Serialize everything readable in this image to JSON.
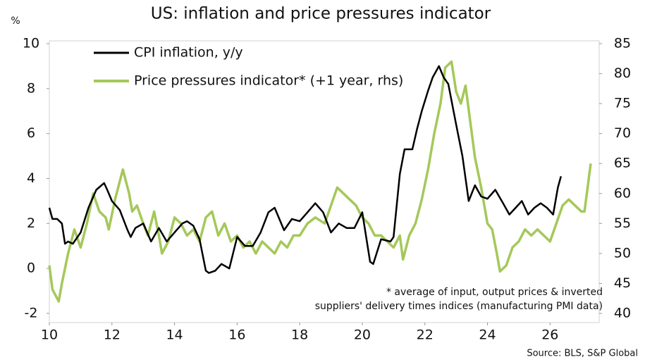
{
  "chart_data": {
    "type": "line",
    "title": "US: inflation and price pressures indicator",
    "y_label": "%",
    "annotation": [
      "* average of input, output prices & inverted",
      "suppliers' delivery times indices (manufacturing PMI data)"
    ],
    "source": "Source: BLS, S&P Global",
    "legend": "upper left",
    "xlim": [
      2010,
      2027.57
    ],
    "xticks": [
      {
        "value": 2010,
        "label": "10"
      },
      {
        "value": 2012,
        "label": "12"
      },
      {
        "value": 2014,
        "label": "14"
      },
      {
        "value": 2016,
        "label": "16"
      },
      {
        "value": 2018,
        "label": "18"
      },
      {
        "value": 2020,
        "label": "20"
      },
      {
        "value": 2022,
        "label": "22"
      },
      {
        "value": 2024,
        "label": "24"
      },
      {
        "value": 2026,
        "label": "26"
      }
    ],
    "ylim": [
      -2,
      10
    ],
    "yticks": [
      -2,
      0,
      2,
      4,
      6,
      8,
      10
    ],
    "negative_tick_color": "#e00000",
    "y2lim": [
      40,
      85
    ],
    "y2ticks": [
      40,
      45,
      50,
      55,
      60,
      65,
      70,
      75,
      80,
      85
    ],
    "series": [
      {
        "name": "CPI inflation, y/y",
        "color": "#000000",
        "x": [
          2010.0,
          2010.1,
          2010.25,
          2010.4,
          2010.5,
          2010.6,
          2010.75,
          2011.0,
          2011.25,
          2011.5,
          2011.75,
          2011.85,
          2012.0,
          2012.25,
          2012.5,
          2012.6,
          2012.75,
          2013.0,
          2013.25,
          2013.5,
          2013.75,
          2014.0,
          2014.25,
          2014.4,
          2014.6,
          2014.8,
          2015.0,
          2015.1,
          2015.3,
          2015.5,
          2015.75,
          2016.0,
          2016.25,
          2016.5,
          2016.75,
          2017.0,
          2017.2,
          2017.5,
          2017.75,
          2018.0,
          2018.25,
          2018.5,
          2018.75,
          2019.0,
          2019.25,
          2019.5,
          2019.75,
          2020.0,
          2020.25,
          2020.35,
          2020.6,
          2020.9,
          2021.0,
          2021.2,
          2021.35,
          2021.6,
          2021.75,
          2021.9,
          2022.1,
          2022.25,
          2022.45,
          2022.6,
          2022.75,
          2023.0,
          2023.2,
          2023.4,
          2023.6,
          2023.8,
          2024.0,
          2024.25,
          2024.5,
          2024.7,
          2024.9,
          2025.1,
          2025.3,
          2025.5,
          2025.7,
          2025.9,
          2026.1,
          2026.25,
          2026.35
        ],
        "values": [
          2.7,
          2.2,
          2.2,
          2.0,
          1.1,
          1.2,
          1.1,
          1.6,
          2.7,
          3.5,
          3.8,
          3.5,
          3.0,
          2.6,
          1.7,
          1.4,
          1.8,
          2.0,
          1.2,
          1.8,
          1.2,
          1.6,
          2.0,
          2.1,
          1.9,
          1.3,
          -0.1,
          -0.2,
          -0.1,
          0.2,
          0.0,
          1.4,
          1.0,
          1.0,
          1.6,
          2.5,
          2.7,
          1.7,
          2.2,
          2.1,
          2.5,
          2.9,
          2.5,
          1.6,
          2.0,
          1.8,
          1.8,
          2.5,
          0.3,
          0.2,
          1.3,
          1.2,
          1.4,
          4.2,
          5.3,
          5.3,
          6.2,
          7.0,
          7.9,
          8.5,
          9.0,
          8.5,
          8.2,
          6.4,
          5.0,
          3.0,
          3.7,
          3.2,
          3.1,
          3.5,
          2.9,
          2.4,
          2.7,
          3.0,
          2.4,
          2.7,
          2.9,
          2.7,
          2.4,
          3.6,
          4.1
        ]
      },
      {
        "name": "Price pressures indicator* (+1 year, rhs)",
        "color": "#a5c85a",
        "axis": "y2",
        "x": [
          2010.0,
          2010.1,
          2010.3,
          2010.4,
          2010.6,
          2010.8,
          2011.0,
          2011.2,
          2011.4,
          2011.6,
          2011.8,
          2011.9,
          2012.1,
          2012.35,
          2012.55,
          2012.65,
          2012.8,
          2013.0,
          2013.15,
          2013.35,
          2013.5,
          2013.6,
          2013.8,
          2014.0,
          2014.2,
          2014.4,
          2014.6,
          2014.8,
          2015.0,
          2015.2,
          2015.4,
          2015.6,
          2015.8,
          2016.0,
          2016.2,
          2016.4,
          2016.6,
          2016.8,
          2017.0,
          2017.2,
          2017.4,
          2017.6,
          2017.8,
          2018.0,
          2018.25,
          2018.5,
          2018.8,
          2019.0,
          2019.2,
          2019.4,
          2019.6,
          2019.8,
          2020.0,
          2020.2,
          2020.4,
          2020.6,
          2020.8,
          2021.0,
          2021.2,
          2021.3,
          2021.5,
          2021.7,
          2021.9,
          2022.1,
          2022.3,
          2022.5,
          2022.65,
          2022.85,
          2023.0,
          2023.15,
          2023.3,
          2023.45,
          2023.6,
          2023.8,
          2024.0,
          2024.15,
          2024.3,
          2024.4,
          2024.6,
          2024.8,
          2025.0,
          2025.2,
          2025.4,
          2025.6,
          2025.8,
          2026.0,
          2026.2,
          2026.4,
          2026.6,
          2026.8,
          2027.0,
          2027.1,
          2027.2,
          2027.3
        ],
        "values": [
          48,
          44,
          42,
          45,
          50,
          54,
          51,
          55,
          60,
          57,
          56,
          54,
          59,
          64,
          60,
          57,
          58,
          55,
          53,
          57,
          53,
          50,
          52,
          56,
          55,
          53,
          54,
          52,
          56,
          57,
          53,
          55,
          52,
          53,
          51,
          52,
          50,
          52,
          51,
          50,
          52,
          51,
          53,
          53,
          55,
          56,
          55,
          58,
          61,
          60,
          59,
          58,
          56,
          55,
          53,
          53,
          52,
          51,
          53,
          49,
          53,
          55,
          59,
          64,
          70,
          75,
          81,
          82,
          77,
          75,
          78,
          72,
          66,
          61,
          55,
          54,
          50,
          47,
          48,
          51,
          52,
          54,
          53,
          54,
          53,
          52,
          55,
          58,
          59,
          58,
          57,
          57,
          61,
          65
        ]
      }
    ]
  }
}
